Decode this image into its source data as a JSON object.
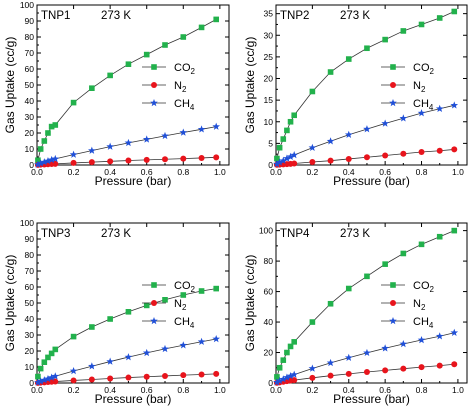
{
  "chart_data": [
    {
      "type": "scatter",
      "panel_label": "TNP1",
      "temperature": "273 K",
      "xlabel": "Pressure (bar)",
      "ylabel": "Gas Uptake (cc/g)",
      "xlim": [
        0,
        1.05
      ],
      "ylim": [
        0,
        100
      ],
      "xticks": [
        "0.0",
        "0.2",
        "0.4",
        "0.6",
        "0.8",
        "1.0"
      ],
      "yticks": [
        "0",
        "10",
        "20",
        "30",
        "40",
        "50",
        "60",
        "70",
        "80",
        "90",
        "100"
      ],
      "legend_position": "right",
      "series": [
        {
          "name": "CO2",
          "name_main": "CO",
          "name_sub": "2",
          "color": "#22b14c",
          "marker": "square",
          "x": [
            0.005,
            0.02,
            0.04,
            0.06,
            0.08,
            0.1,
            0.2,
            0.3,
            0.4,
            0.5,
            0.6,
            0.7,
            0.8,
            0.9,
            0.98
          ],
          "y": [
            3,
            10,
            15,
            20,
            24,
            25,
            39,
            48,
            56,
            63,
            69,
            75,
            80,
            86,
            91
          ]
        },
        {
          "name": "N2",
          "name_main": "N",
          "name_sub": "2",
          "color": "#e8141c",
          "marker": "circle",
          "x": [
            0.005,
            0.02,
            0.04,
            0.06,
            0.08,
            0.1,
            0.2,
            0.3,
            0.4,
            0.5,
            0.6,
            0.7,
            0.8,
            0.9,
            0.98
          ],
          "y": [
            0.1,
            0.2,
            0.3,
            0.5,
            0.6,
            0.7,
            1.3,
            1.8,
            2.3,
            2.8,
            3.2,
            3.6,
            4.0,
            4.4,
            4.8
          ]
        },
        {
          "name": "CH4",
          "name_main": "CH",
          "name_sub": "4",
          "color": "#2050d8",
          "marker": "star",
          "x": [
            0.005,
            0.02,
            0.04,
            0.06,
            0.08,
            0.1,
            0.2,
            0.3,
            0.4,
            0.5,
            0.6,
            0.7,
            0.8,
            0.9,
            0.98
          ],
          "y": [
            0.3,
            1.0,
            1.8,
            2.5,
            3.2,
            3.8,
            6.5,
            9.0,
            11.5,
            13.8,
            16,
            18.2,
            20.3,
            22.3,
            24
          ]
        }
      ]
    },
    {
      "type": "scatter",
      "panel_label": "TNP2",
      "temperature": "273 K",
      "xlabel": "Pressure (bar)",
      "ylabel": "Gas Uptake (cc/g)",
      "xlim": [
        0,
        1.05
      ],
      "ylim": [
        0,
        37
      ],
      "xticks": [
        "0.0",
        "0.2",
        "0.4",
        "0.6",
        "0.8",
        "1.0"
      ],
      "yticks": [
        "0",
        "5",
        "10",
        "15",
        "20",
        "25",
        "30",
        "35"
      ],
      "legend_position": "right",
      "series": [
        {
          "name": "CO2",
          "name_main": "CO",
          "name_sub": "2",
          "color": "#22b14c",
          "marker": "square",
          "x": [
            0.005,
            0.02,
            0.04,
            0.06,
            0.08,
            0.1,
            0.2,
            0.3,
            0.4,
            0.5,
            0.6,
            0.7,
            0.8,
            0.9,
            0.98
          ],
          "y": [
            1.5,
            4,
            6,
            8,
            10,
            11.5,
            17,
            21.5,
            24.5,
            27,
            29,
            31,
            32.5,
            34,
            35.5
          ]
        },
        {
          "name": "N2",
          "name_main": "N",
          "name_sub": "2",
          "color": "#e8141c",
          "marker": "circle",
          "x": [
            0.005,
            0.02,
            0.04,
            0.06,
            0.08,
            0.1,
            0.2,
            0.3,
            0.4,
            0.5,
            0.6,
            0.7,
            0.8,
            0.9,
            0.98
          ],
          "y": [
            0.05,
            0.1,
            0.15,
            0.2,
            0.25,
            0.35,
            0.7,
            1.0,
            1.4,
            1.8,
            2.2,
            2.6,
            3.0,
            3.3,
            3.6
          ]
        },
        {
          "name": "CH4",
          "name_main": "CH",
          "name_sub": "4",
          "color": "#2050d8",
          "marker": "star",
          "x": [
            0.005,
            0.02,
            0.04,
            0.06,
            0.08,
            0.1,
            0.2,
            0.3,
            0.4,
            0.5,
            0.6,
            0.7,
            0.8,
            0.9,
            0.98
          ],
          "y": [
            0.2,
            0.6,
            1.0,
            1.5,
            1.9,
            2.3,
            4.0,
            5.5,
            7.0,
            8.3,
            9.6,
            10.8,
            12.0,
            13.0,
            13.8
          ]
        }
      ]
    },
    {
      "type": "scatter",
      "panel_label": "TNP3",
      "temperature": "273 K",
      "xlabel": "Pressure (bar)",
      "ylabel": "Gas Uptake (cc/g)",
      "xlim": [
        0,
        1.05
      ],
      "ylim": [
        0,
        100
      ],
      "xticks": [
        "0.0",
        "0.2",
        "0.4",
        "0.6",
        "0.8",
        "1.0"
      ],
      "yticks": [
        "0",
        "10",
        "20",
        "30",
        "40",
        "50",
        "60",
        "70",
        "80",
        "90",
        "100"
      ],
      "legend_position": "right",
      "series": [
        {
          "name": "CO2",
          "name_main": "CO",
          "name_sub": "2",
          "color": "#22b14c",
          "marker": "square",
          "x": [
            0.005,
            0.02,
            0.04,
            0.06,
            0.08,
            0.1,
            0.2,
            0.3,
            0.4,
            0.5,
            0.6,
            0.7,
            0.8,
            0.9,
            0.98
          ],
          "y": [
            4,
            9,
            13,
            16,
            18.5,
            21,
            29,
            35,
            40,
            44.5,
            48.5,
            52,
            55,
            57.5,
            59
          ]
        },
        {
          "name": "N2",
          "name_main": "N",
          "name_sub": "2",
          "color": "#e8141c",
          "marker": "circle",
          "x": [
            0.005,
            0.02,
            0.04,
            0.06,
            0.08,
            0.1,
            0.2,
            0.3,
            0.4,
            0.5,
            0.6,
            0.7,
            0.8,
            0.9,
            0.98
          ],
          "y": [
            0.1,
            0.2,
            0.4,
            0.6,
            0.8,
            0.9,
            1.6,
            2.2,
            2.8,
            3.4,
            3.9,
            4.4,
            4.9,
            5.3,
            5.7
          ]
        },
        {
          "name": "CH4",
          "name_main": "CH",
          "name_sub": "4",
          "color": "#2050d8",
          "marker": "star",
          "x": [
            0.005,
            0.02,
            0.04,
            0.06,
            0.08,
            0.1,
            0.2,
            0.3,
            0.4,
            0.5,
            0.6,
            0.7,
            0.8,
            0.9,
            0.98
          ],
          "y": [
            0.3,
            1.0,
            1.8,
            2.6,
            3.4,
            4.2,
            7.5,
            10.5,
            13.4,
            16.2,
            18.8,
            21.3,
            23.6,
            25.8,
            27.5
          ]
        }
      ]
    },
    {
      "type": "scatter",
      "panel_label": "TNP4",
      "temperature": "273 K",
      "xlabel": "Pressure (bar)",
      "ylabel": "Gas Uptake (cc/g)",
      "xlim": [
        0,
        1.05
      ],
      "ylim": [
        0,
        105
      ],
      "xticks": [
        "0.0",
        "0.2",
        "0.4",
        "0.6",
        "0.8",
        "1.0"
      ],
      "yticks": [
        "0",
        "20",
        "40",
        "60",
        "80",
        "100"
      ],
      "legend_position": "right",
      "series": [
        {
          "name": "CO2",
          "name_main": "CO",
          "name_sub": "2",
          "color": "#22b14c",
          "marker": "square",
          "x": [
            0.005,
            0.02,
            0.04,
            0.06,
            0.08,
            0.1,
            0.2,
            0.3,
            0.4,
            0.5,
            0.6,
            0.7,
            0.8,
            0.9,
            0.98
          ],
          "y": [
            4,
            10,
            15,
            20,
            24,
            27,
            40,
            52,
            62,
            70,
            78,
            85,
            91,
            96,
            100
          ]
        },
        {
          "name": "N2",
          "name_main": "N",
          "name_sub": "2",
          "color": "#e8141c",
          "marker": "circle",
          "x": [
            0.005,
            0.02,
            0.04,
            0.06,
            0.08,
            0.1,
            0.2,
            0.3,
            0.4,
            0.5,
            0.6,
            0.7,
            0.8,
            0.9,
            0.98
          ],
          "y": [
            0.2,
            0.4,
            0.8,
            1.2,
            1.6,
            1.9,
            3.4,
            4.8,
            6.0,
            7.2,
            8.3,
            9.4,
            10.4,
            11.4,
            12.3
          ]
        },
        {
          "name": "CH4",
          "name_main": "CH",
          "name_sub": "4",
          "color": "#2050d8",
          "marker": "star",
          "x": [
            0.005,
            0.02,
            0.04,
            0.06,
            0.08,
            0.1,
            0.2,
            0.3,
            0.4,
            0.5,
            0.6,
            0.7,
            0.8,
            0.9,
            0.98
          ],
          "y": [
            0.4,
            1.4,
            2.5,
            3.6,
            4.6,
            5.5,
            9.5,
            13.2,
            16.6,
            19.8,
            22.8,
            25.6,
            28.2,
            30.7,
            33
          ]
        }
      ]
    }
  ]
}
